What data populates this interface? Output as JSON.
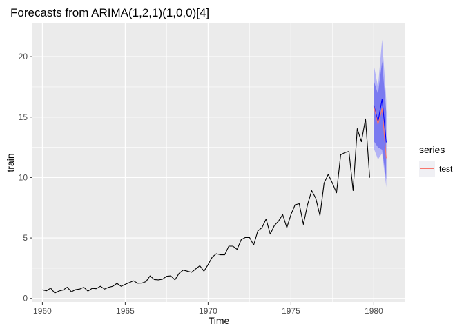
{
  "chart_data": {
    "type": "line",
    "title": "Forecasts from ARIMA(1,2,1)(1,0,0)[4]",
    "xlabel": "Time",
    "ylabel": "train",
    "xlim": [
      1959.4,
      1981.9
    ],
    "ylim": [
      -0.3,
      22.8
    ],
    "x_ticks": [
      1960,
      1965,
      1970,
      1975,
      1980
    ],
    "x_tick_labels": [
      "1960",
      "1965",
      "1970",
      "1975",
      "1980"
    ],
    "y_ticks": [
      0,
      5,
      10,
      15,
      20
    ],
    "y_tick_labels": [
      "0",
      "5",
      "10",
      "15",
      "20"
    ],
    "grid": true,
    "legend": {
      "title": "series",
      "position": "right",
      "entries": [
        {
          "label": "test",
          "color": "#f8766d"
        }
      ]
    },
    "series": [
      {
        "role": "train",
        "color": "#000000",
        "start": 1960.0,
        "frequency": 4,
        "values": [
          0.71,
          0.63,
          0.85,
          0.44,
          0.61,
          0.69,
          0.92,
          0.55,
          0.72,
          0.77,
          0.92,
          0.6,
          0.83,
          0.8,
          1.0,
          0.77,
          0.92,
          1.0,
          1.24,
          1.0,
          1.16,
          1.3,
          1.45,
          1.25,
          1.26,
          1.38,
          1.86,
          1.56,
          1.53,
          1.59,
          1.83,
          1.86,
          1.53,
          2.07,
          2.34,
          2.25,
          2.16,
          2.43,
          2.7,
          2.25,
          2.79,
          3.42,
          3.69,
          3.6,
          3.6,
          4.32,
          4.32,
          4.05,
          4.86,
          5.04,
          5.04,
          4.41,
          5.58,
          5.85,
          6.57,
          5.31,
          6.03,
          6.39,
          6.93,
          5.85,
          6.93,
          7.74,
          7.83,
          6.12,
          7.74,
          8.91,
          8.28,
          6.84,
          9.54,
          10.26,
          9.54,
          8.73,
          11.88,
          12.06,
          12.15,
          8.91,
          14.04,
          12.96,
          14.85,
          9.99
        ]
      },
      {
        "role": "forecast",
        "color": "#0000ff",
        "start": 1980.0,
        "frequency": 4,
        "values": [
          16.0,
          14.6,
          16.5,
          12.9
        ],
        "lo80": [
          13.0,
          12.5,
          12.3,
          9.8
        ],
        "hi80": [
          18.0,
          16.9,
          19.6,
          15.4
        ],
        "lo95": [
          12.4,
          11.5,
          12.0,
          9.2
        ],
        "hi95": [
          19.3,
          17.5,
          21.4,
          16.4
        ]
      },
      {
        "role": "test",
        "name": "test",
        "color": "#f8766d",
        "start": 1980.0,
        "frequency": 4,
        "values": [
          15.9,
          14.4,
          15.7,
          11.6
        ]
      }
    ]
  }
}
